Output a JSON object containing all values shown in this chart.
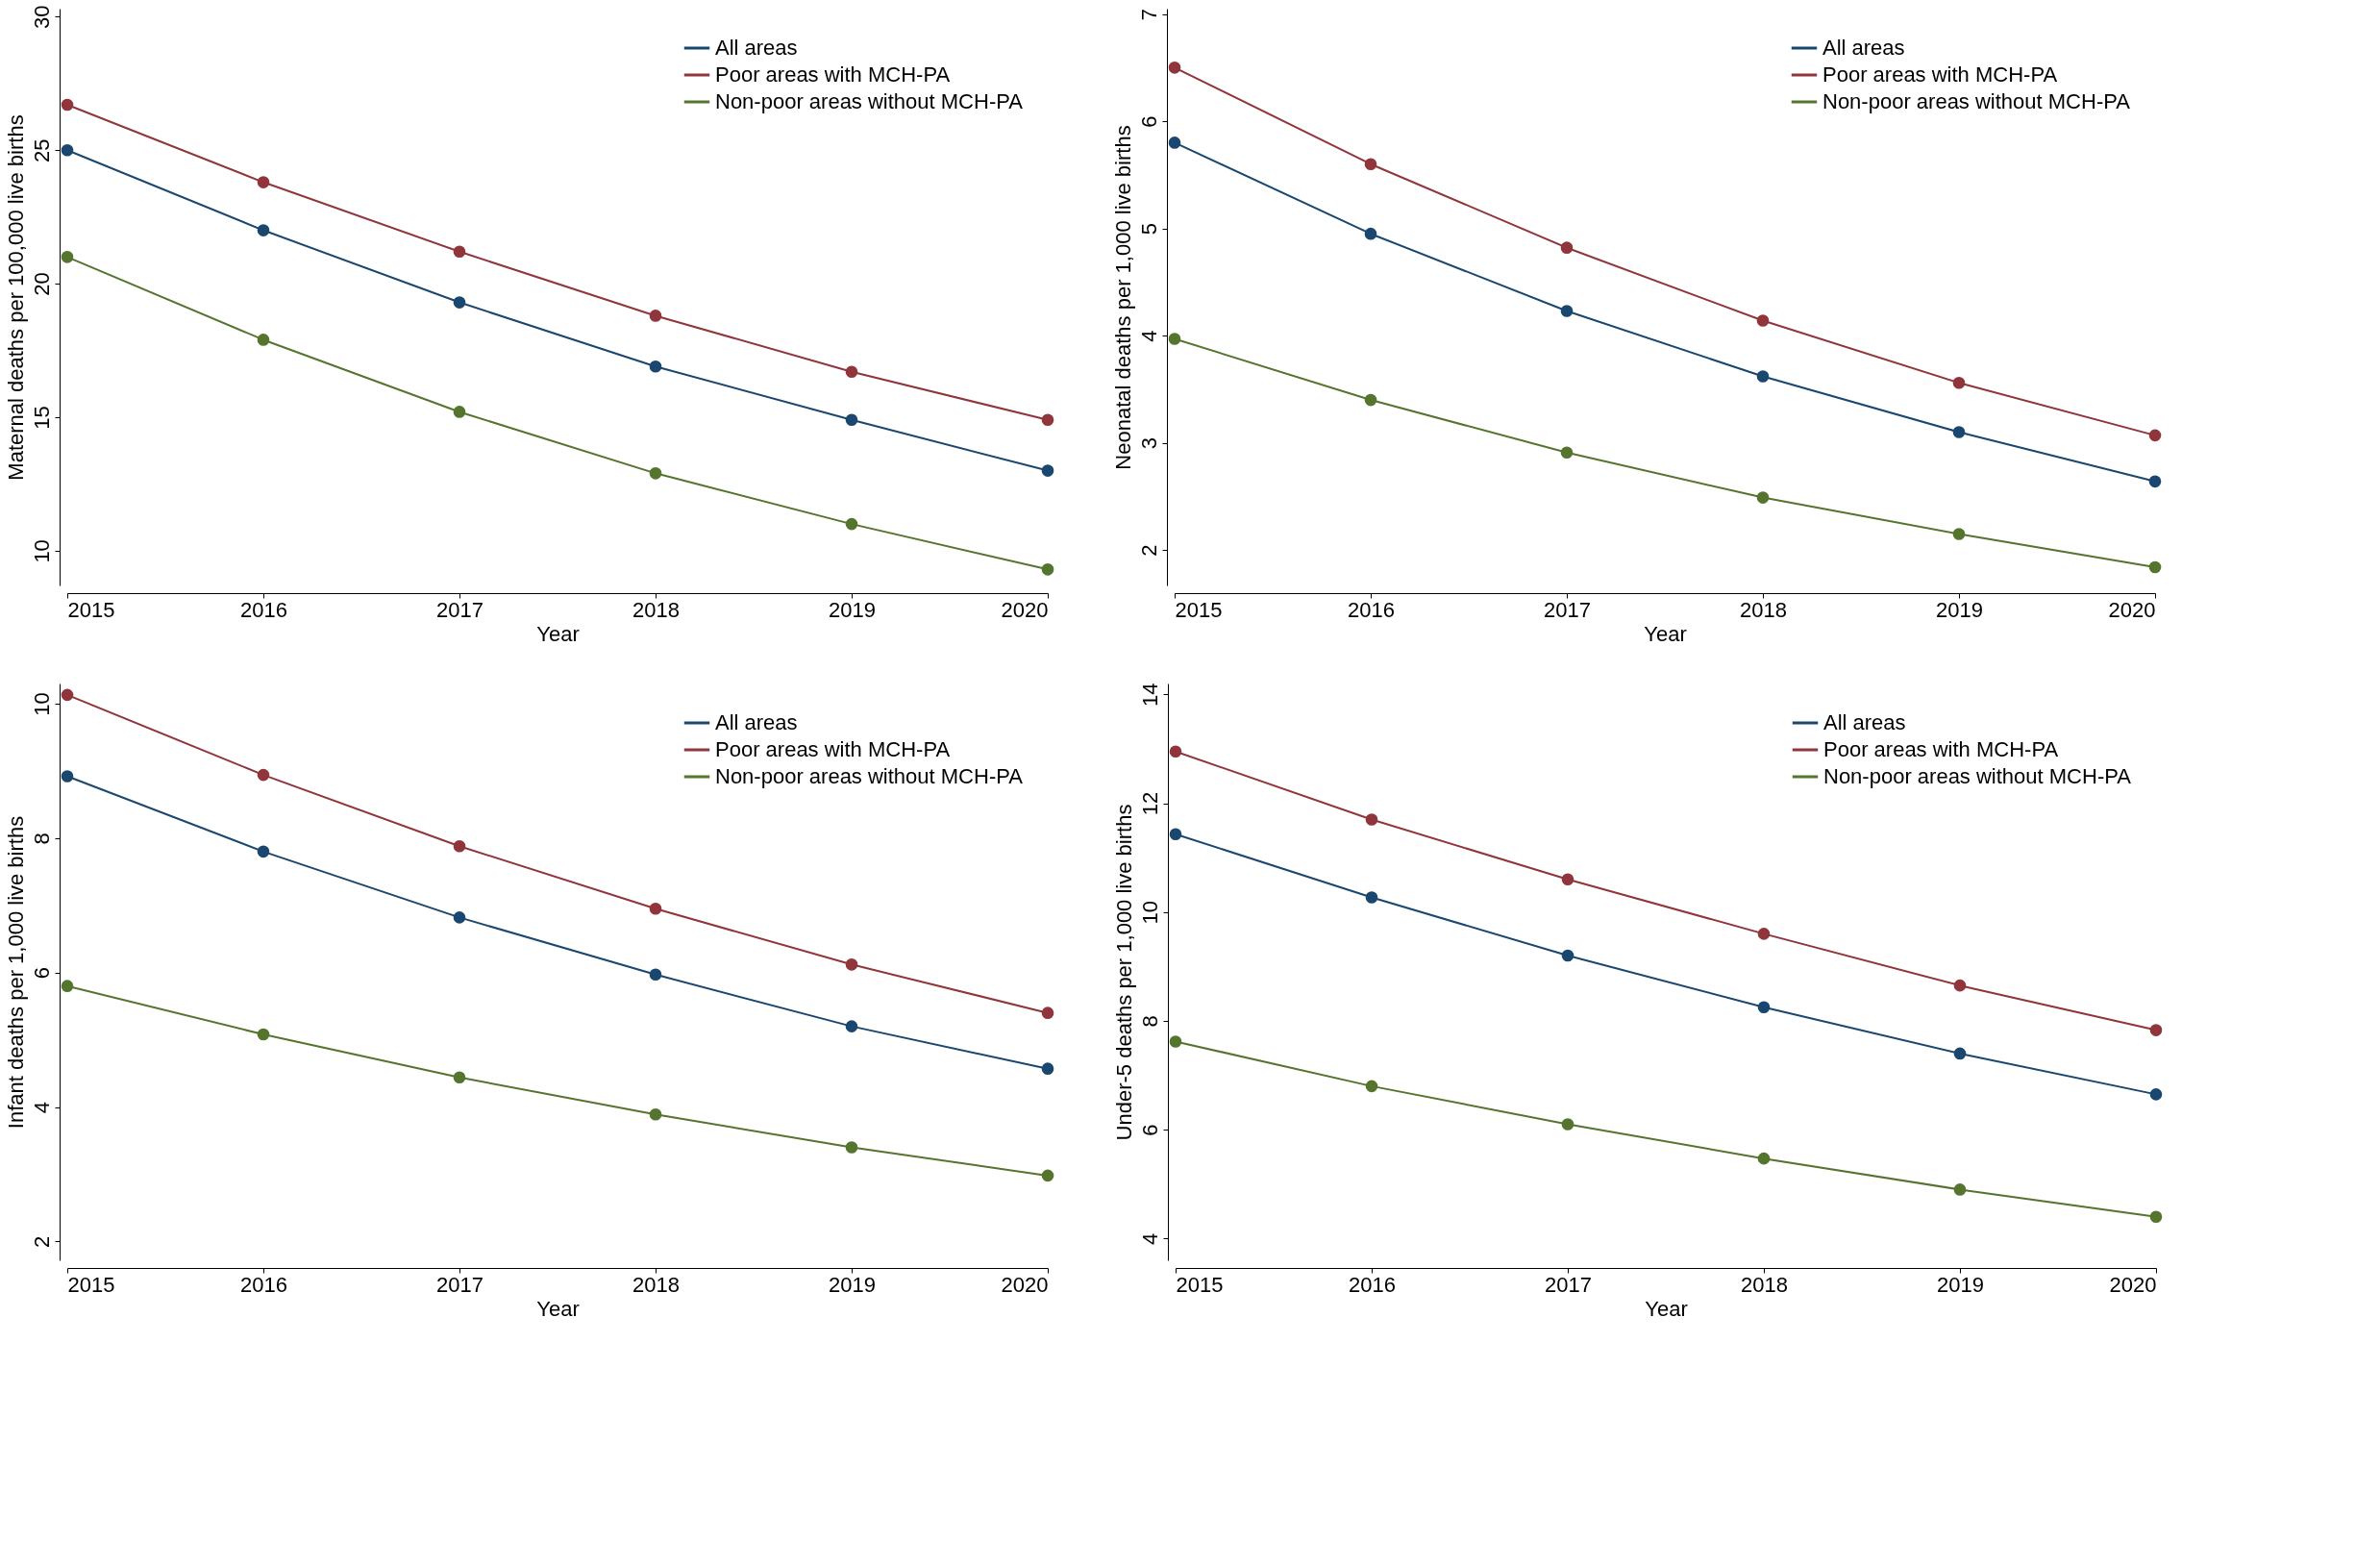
{
  "chart_data": [
    {
      "type": "line",
      "xlabel": "Year",
      "ylabel": "Maternal deaths per 100,000 live births",
      "x": [
        2015,
        2016,
        2017,
        2018,
        2019,
        2020
      ],
      "xlim": [
        2015,
        2020
      ],
      "xticks": [
        2015,
        2016,
        2017,
        2018,
        2019,
        2020
      ],
      "ylim": [
        8.7,
        30.3
      ],
      "yticks": [
        10,
        15,
        20,
        25,
        30
      ],
      "legend": "top right",
      "marker": "circle",
      "grid": false,
      "series": [
        {
          "name": "All areas",
          "color": "#1a476f",
          "values": [
            25.0,
            22.0,
            19.3,
            16.9,
            14.9,
            13.0
          ]
        },
        {
          "name": "Poor areas with MCH-PA",
          "color": "#90353b",
          "values": [
            26.7,
            23.8,
            21.2,
            18.8,
            16.7,
            14.9
          ]
        },
        {
          "name": "Non-poor areas without MCH-PA",
          "color": "#55752f",
          "values": [
            21.0,
            17.9,
            15.2,
            12.9,
            11.0,
            9.3
          ]
        }
      ]
    },
    {
      "type": "line",
      "xlabel": "Year",
      "ylabel": "Neonatal deaths per 1,000 live births",
      "x": [
        2015,
        2016,
        2017,
        2018,
        2019,
        2020
      ],
      "xlim": [
        2015,
        2020
      ],
      "xticks": [
        2015,
        2016,
        2017,
        2018,
        2019,
        2020
      ],
      "ylim": [
        1.67,
        7.05
      ],
      "yticks": [
        2,
        3,
        4,
        5,
        6,
        7
      ],
      "legend": "top right",
      "marker": "circle",
      "grid": false,
      "series": [
        {
          "name": "All areas",
          "color": "#1a476f",
          "values": [
            5.8,
            4.95,
            4.23,
            3.62,
            3.1,
            2.64
          ]
        },
        {
          "name": "Poor areas with MCH-PA",
          "color": "#90353b",
          "values": [
            6.5,
            5.6,
            4.82,
            4.14,
            3.56,
            3.07
          ]
        },
        {
          "name": "Non-poor areas without MCH-PA",
          "color": "#55752f",
          "values": [
            3.97,
            3.4,
            2.91,
            2.49,
            2.15,
            1.84
          ]
        }
      ]
    },
    {
      "type": "line",
      "xlabel": "Year",
      "ylabel": "Infant deaths per 1,000 live births",
      "x": [
        2015,
        2016,
        2017,
        2018,
        2019,
        2020
      ],
      "xlim": [
        2015,
        2020
      ],
      "xticks": [
        2015,
        2016,
        2017,
        2018,
        2019,
        2020
      ],
      "ylim": [
        1.72,
        10.3
      ],
      "yticks": [
        2,
        4,
        6,
        8,
        10
      ],
      "legend": "top right",
      "marker": "circle",
      "grid": false,
      "series": [
        {
          "name": "All areas",
          "color": "#1a476f",
          "values": [
            8.92,
            7.8,
            6.82,
            5.97,
            5.2,
            4.57
          ]
        },
        {
          "name": "Poor areas with MCH-PA",
          "color": "#90353b",
          "values": [
            10.13,
            8.94,
            7.88,
            6.95,
            6.12,
            5.4
          ]
        },
        {
          "name": "Non-poor areas without MCH-PA",
          "color": "#55752f",
          "values": [
            5.8,
            5.08,
            4.44,
            3.89,
            3.4,
            2.98
          ]
        }
      ]
    },
    {
      "type": "line",
      "xlabel": "Year",
      "ylabel": "Under-5 deaths per 1,000 live births",
      "x": [
        2015,
        2016,
        2017,
        2018,
        2019,
        2020
      ],
      "xlim": [
        2015,
        2020
      ],
      "xticks": [
        2015,
        2016,
        2017,
        2018,
        2019,
        2020
      ],
      "ylim": [
        3.6,
        14.2
      ],
      "yticks": [
        4,
        6,
        8,
        10,
        12,
        14
      ],
      "legend": "top right",
      "marker": "circle",
      "grid": false,
      "series": [
        {
          "name": "All areas",
          "color": "#1a476f",
          "values": [
            11.43,
            10.27,
            9.2,
            8.25,
            7.4,
            6.65
          ]
        },
        {
          "name": "Poor areas with MCH-PA",
          "color": "#90353b",
          "values": [
            12.95,
            11.7,
            10.6,
            9.6,
            8.65,
            7.83
          ]
        },
        {
          "name": "Non-poor areas without MCH-PA",
          "color": "#55752f",
          "values": [
            7.62,
            6.8,
            6.1,
            5.47,
            4.9,
            4.4
          ]
        }
      ]
    }
  ]
}
